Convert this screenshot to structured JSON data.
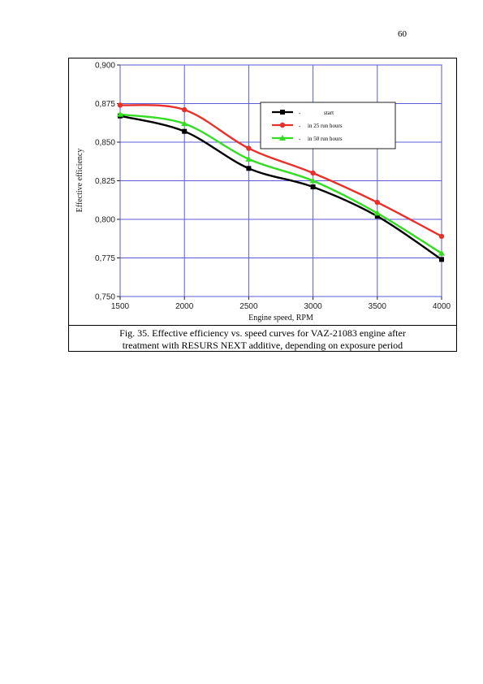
{
  "page": {
    "number": "60"
  },
  "caption": {
    "line1": "Fig. 35. Effective efficiency vs. speed curves for VAZ-21083 engine after",
    "line2": "treatment with RESURS NEXT additive, depending on exposure period"
  },
  "chart_data": {
    "type": "line",
    "xlabel": "Engine speed, RPM",
    "ylabel": "Effective efficiency",
    "xlim": [
      1500,
      4000
    ],
    "ylim": [
      0.75,
      0.9
    ],
    "x_ticks": [
      "1500",
      "2000",
      "2500",
      "3000",
      "3500",
      "4000"
    ],
    "y_ticks": [
      "0,750",
      "0,775",
      "0,800",
      "0,825",
      "0,850",
      "0,875",
      "0,900"
    ],
    "grid": true,
    "legend_position": "top-right",
    "x": [
      1500,
      2000,
      2500,
      3000,
      3500,
      4000
    ],
    "series": [
      {
        "name": "start",
        "marker": "square",
        "color": "#000000",
        "values": [
          0.867,
          0.857,
          0.833,
          0.821,
          0.802,
          0.774
        ]
      },
      {
        "name": "in 25 run hours",
        "marker": "circle",
        "color": "#e8302a",
        "values": [
          0.874,
          0.871,
          0.846,
          0.83,
          0.811,
          0.789
        ]
      },
      {
        "name": "in 50 run hours",
        "marker": "triangle",
        "color": "#33dd22",
        "values": [
          0.868,
          0.862,
          0.839,
          0.825,
          0.804,
          0.778
        ]
      }
    ],
    "grid_color": "#5b5bd6"
  }
}
